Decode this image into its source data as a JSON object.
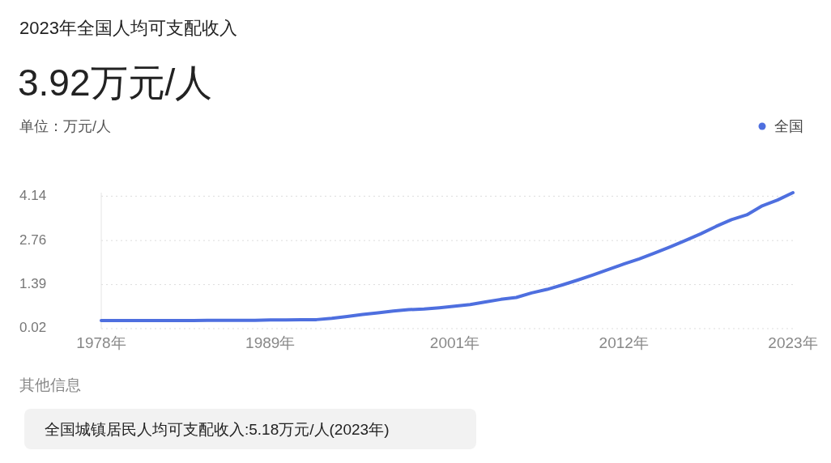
{
  "chart_data": {
    "type": "line",
    "title": "2023年全国人均可支配收入",
    "subtitle": "3.92万元/人",
    "ylabel": "单位：万元/人",
    "x": [
      1978,
      1979,
      1980,
      1981,
      1982,
      1983,
      1984,
      1985,
      1986,
      1987,
      1988,
      1989,
      1990,
      1991,
      1992,
      1993,
      1994,
      1995,
      1996,
      1997,
      1998,
      1999,
      2000,
      2001,
      2002,
      2003,
      2004,
      2005,
      2006,
      2007,
      2008,
      2009,
      2010,
      2011,
      2012,
      2013,
      2014,
      2015,
      2016,
      2017,
      2018,
      2019,
      2020,
      2021,
      2022,
      2023
    ],
    "series": [
      {
        "name": "全国",
        "color": "#4e6fdf",
        "values": [
          0.27,
          0.27,
          0.27,
          0.27,
          0.27,
          0.27,
          0.27,
          0.28,
          0.28,
          0.28,
          0.28,
          0.29,
          0.29,
          0.3,
          0.3,
          0.34,
          0.4,
          0.46,
          0.51,
          0.57,
          0.61,
          0.63,
          0.67,
          0.72,
          0.77,
          0.85,
          0.93,
          0.99,
          1.13,
          1.24,
          1.38,
          1.53,
          1.69,
          1.86,
          2.03,
          2.19,
          2.37,
          2.56,
          2.76,
          2.97,
          3.2,
          3.41,
          3.56,
          3.84,
          4.02,
          4.25
        ]
      }
    ],
    "xlim": [
      1978,
      2023
    ],
    "xticks": [
      {
        "value": 1978,
        "label": "1978年"
      },
      {
        "value": 1989,
        "label": "1989年"
      },
      {
        "value": 2001,
        "label": "2001年"
      },
      {
        "value": 2012,
        "label": "2012年"
      },
      {
        "value": 2023,
        "label": "2023年"
      }
    ],
    "ylim": [
      0.02,
      4.25
    ],
    "yticks": [
      0.02,
      1.39,
      2.76,
      4.14
    ],
    "grid": "y",
    "legend": "top right",
    "marker": "none",
    "line_style": "solid",
    "annotations": [
      "其他信息",
      "全国城镇居民人均可支配收入:5.18万元/人(2023年)"
    ]
  }
}
